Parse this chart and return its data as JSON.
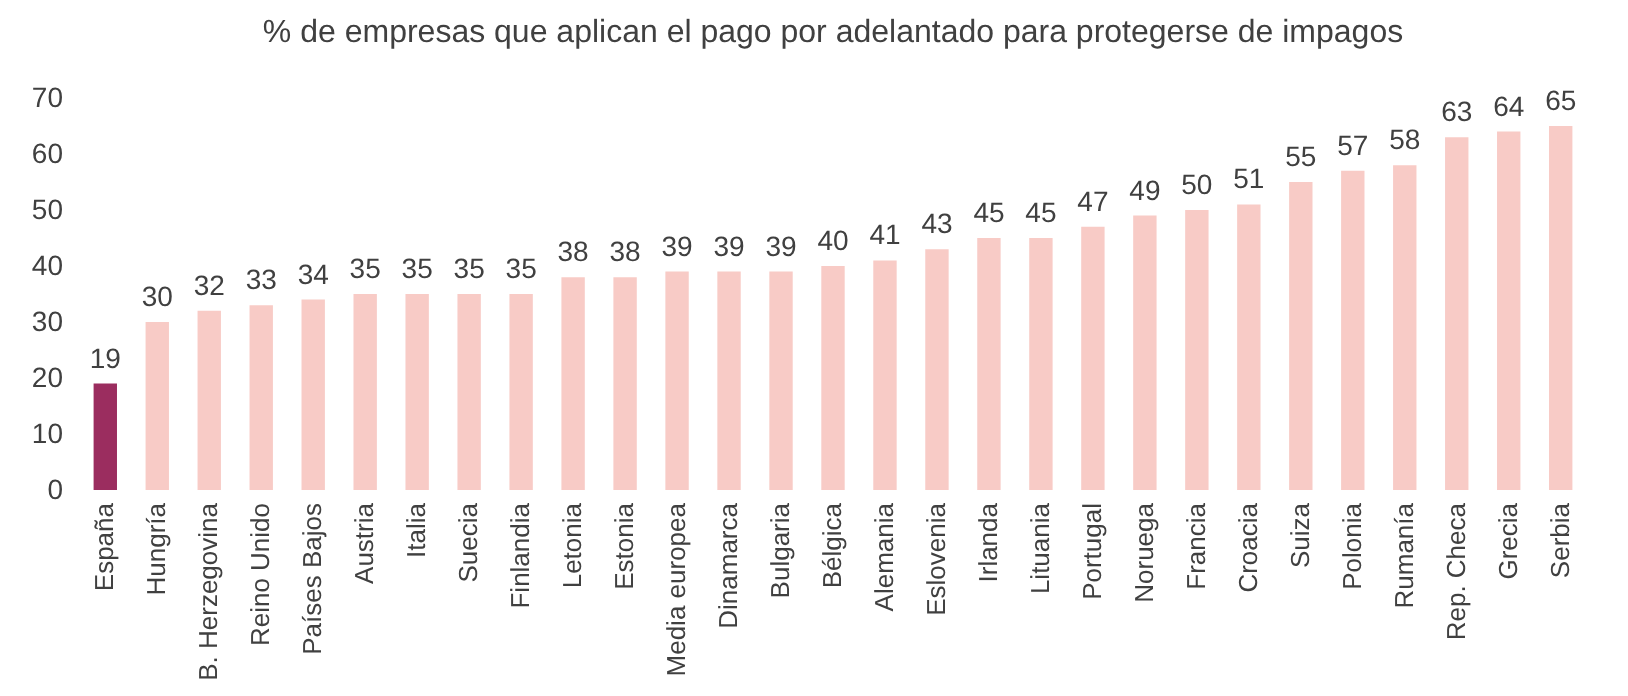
{
  "chart_data": {
    "type": "bar",
    "title": "% de empresas que aplican el pago por  adelantado para protegerse de impagos",
    "categories": [
      "España",
      "Hungría",
      "B. Herzegovina",
      "Reino Unido",
      "Países Bajos",
      "Austria",
      "Italia",
      "Suecia",
      "Finlandia",
      "Letonia",
      "Estonia",
      "Media europea",
      "Dinamarca",
      "Bulgaria",
      "Bélgica",
      "Alemania",
      "Eslovenia",
      "Irlanda",
      "Lituania",
      "Portugal",
      "Noruega",
      "Francia",
      "Croacia",
      "Suiza",
      "Polonia",
      "Rumanía",
      "Rep. Checa",
      "Grecia",
      "Serbia"
    ],
    "values": [
      19,
      30,
      32,
      33,
      34,
      35,
      35,
      35,
      35,
      38,
      38,
      39,
      39,
      39,
      40,
      41,
      43,
      45,
      45,
      47,
      49,
      50,
      51,
      55,
      57,
      58,
      63,
      64,
      65
    ],
    "colors": [
      "#9b2d5f",
      "#f8cbc6",
      "#f8cbc6",
      "#f8cbc6",
      "#f8cbc6",
      "#f8cbc6",
      "#f8cbc6",
      "#f8cbc6",
      "#f8cbc6",
      "#f8cbc6",
      "#f8cbc6",
      "#f8cbc6",
      "#f8cbc6",
      "#f8cbc6",
      "#f8cbc6",
      "#f8cbc6",
      "#f8cbc6",
      "#f8cbc6",
      "#f8cbc6",
      "#f8cbc6",
      "#f8cbc6",
      "#f8cbc6",
      "#f8cbc6",
      "#f8cbc6",
      "#f8cbc6",
      "#f8cbc6",
      "#f8cbc6",
      "#f8cbc6",
      "#f8cbc6"
    ],
    "ylim": [
      0,
      70
    ],
    "yticks": [
      0,
      10,
      20,
      30,
      40,
      50,
      60,
      70
    ],
    "data_labels": true,
    "grid": false
  }
}
